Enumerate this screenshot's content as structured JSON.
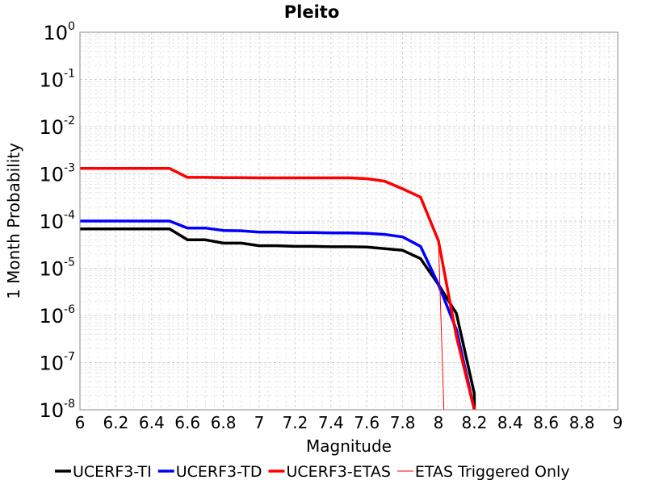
{
  "chart_data": {
    "type": "line",
    "title": "Pleito",
    "xlabel": "Magnitude",
    "ylabel": "1 Month Probability",
    "xlim": [
      6,
      9
    ],
    "ylim": [
      1e-08,
      1
    ],
    "yscale": "log",
    "grid": true,
    "legend_position": "bottom",
    "x_ticks": [
      "6",
      "6.2",
      "6.4",
      "6.6",
      "6.8",
      "7",
      "7.2",
      "7.4",
      "7.6",
      "7.8",
      "8",
      "8.2",
      "8.4",
      "8.6",
      "8.8",
      "9"
    ],
    "y_ticks": [
      {
        "base": "10",
        "exp": "0"
      },
      {
        "base": "10",
        "exp": "-1"
      },
      {
        "base": "10",
        "exp": "-2"
      },
      {
        "base": "10",
        "exp": "-3"
      },
      {
        "base": "10",
        "exp": "-4"
      },
      {
        "base": "10",
        "exp": "-5"
      },
      {
        "base": "10",
        "exp": "-6"
      },
      {
        "base": "10",
        "exp": "-7"
      },
      {
        "base": "10",
        "exp": "-8"
      }
    ],
    "series": [
      {
        "name": "UCERF3-TI",
        "color": "#000000",
        "width": 3.5,
        "x": [
          6.0,
          6.5,
          6.6,
          6.7,
          6.8,
          6.9,
          7.0,
          7.1,
          7.2,
          7.3,
          7.4,
          7.5,
          7.6,
          7.7,
          7.8,
          7.9,
          8.0,
          8.1,
          8.2,
          8.2
        ],
        "y": [
          6.8e-05,
          6.8e-05,
          4e-05,
          4e-05,
          3.4e-05,
          3.4e-05,
          3e-05,
          3e-05,
          2.9e-05,
          2.9e-05,
          2.85e-05,
          2.85e-05,
          2.8e-05,
          2.6e-05,
          2.4e-05,
          1.6e-05,
          4.5e-06,
          1.1e-06,
          2.2e-08,
          1e-08
        ]
      },
      {
        "name": "UCERF3-TD",
        "color": "#0000ff",
        "width": 3.5,
        "x": [
          6.0,
          6.5,
          6.6,
          6.7,
          6.8,
          6.9,
          7.0,
          7.1,
          7.2,
          7.3,
          7.4,
          7.5,
          7.6,
          7.7,
          7.8,
          7.9,
          8.0,
          8.1,
          8.2
        ],
        "y": [
          0.0001,
          0.0001,
          7.1e-05,
          7.1e-05,
          6.3e-05,
          6.2e-05,
          5.8e-05,
          5.8e-05,
          5.7e-05,
          5.7e-05,
          5.6e-05,
          5.6e-05,
          5.5e-05,
          5.2e-05,
          4.6e-05,
          2.9e-05,
          4.5e-06,
          5e-07,
          1e-08
        ]
      },
      {
        "name": "UCERF3-ETAS",
        "color": "#ff0000",
        "width": 3.5,
        "x": [
          6.0,
          6.5,
          6.6,
          6.7,
          6.8,
          6.9,
          7.0,
          7.1,
          7.2,
          7.3,
          7.4,
          7.5,
          7.6,
          7.7,
          7.8,
          7.9,
          8.0,
          8.1,
          8.2
        ],
        "y": [
          0.0013,
          0.0013,
          0.00084,
          0.00084,
          0.00083,
          0.00083,
          0.00082,
          0.00082,
          0.00082,
          0.00082,
          0.00082,
          0.00082,
          0.00079,
          0.0007,
          0.00048,
          0.00032,
          3.8e-05,
          3.6e-07,
          1e-08
        ]
      },
      {
        "name": "ETAS Triggered Only",
        "color": "#ff0000",
        "width": 1,
        "x": [
          8.0,
          8.03
        ],
        "y": [
          3.8e-05,
          1e-08
        ]
      }
    ]
  }
}
